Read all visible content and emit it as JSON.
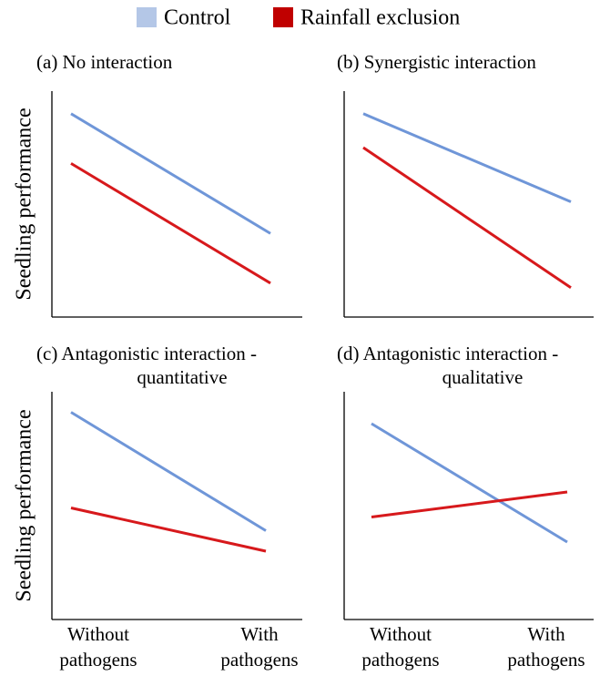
{
  "legend_series": "chart_data.0.series",
  "chart_data": [
    {
      "type": "line",
      "title": [
        "(a) No interaction"
      ],
      "ylabel": "Seedling performance",
      "categories": [
        null,
        null
      ],
      "ylim": [
        0,
        100
      ],
      "series": [
        {
          "name": "Control",
          "color": "#6f96d8",
          "legend_color": "#b4c7e7",
          "values": [
            90,
            37
          ]
        },
        {
          "name": "Rainfall exclusion",
          "color": "#d7191c",
          "legend_color": "#c00000",
          "values": [
            68,
            15
          ]
        }
      ]
    },
    {
      "type": "line",
      "title": [
        "(b) Synergistic interaction"
      ],
      "categories": [
        null,
        null
      ],
      "ylim": [
        0,
        100
      ],
      "series": [
        {
          "color": "#6f96d8",
          "values": [
            90,
            51
          ]
        },
        {
          "color": "#d7191c",
          "values": [
            75,
            13
          ]
        }
      ]
    },
    {
      "type": "line",
      "title": [
        "(c) Antagonistic interaction -",
        "quantitative"
      ],
      "ylabel": "Seedling performance",
      "categories": [
        [
          "Without",
          "pathogens"
        ],
        [
          "With",
          "pathogens"
        ]
      ],
      "ylim": [
        0,
        100
      ],
      "series": [
        {
          "color": "#6f96d8",
          "values": [
            91,
            39
          ]
        },
        {
          "color": "#d7191c",
          "values": [
            49,
            30
          ]
        }
      ]
    },
    {
      "type": "line",
      "title": [
        "(d) Antagonistic interaction -",
        "qualitative"
      ],
      "categories": [
        [
          "Without",
          "pathogens"
        ],
        [
          "With",
          "pathogens"
        ]
      ],
      "ylim": [
        0,
        100
      ],
      "series": [
        {
          "color": "#6f96d8",
          "values": [
            86,
            34
          ]
        },
        {
          "color": "#d7191c",
          "values": [
            45,
            56
          ]
        }
      ]
    }
  ]
}
